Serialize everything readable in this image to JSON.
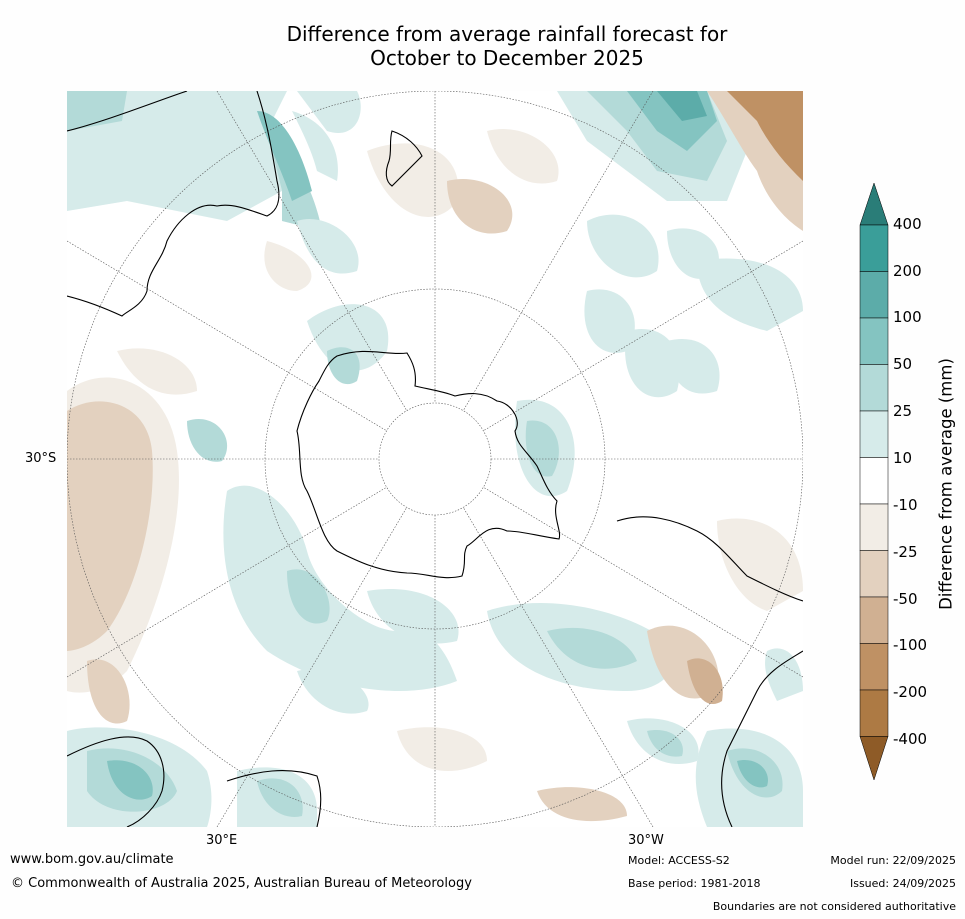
{
  "title": {
    "line1": "Difference from average rainfall forecast for",
    "line2": "October to December 2025"
  },
  "axes": {
    "lat_label": "30°S",
    "lon_label_left": "30°E",
    "lon_label_right": "30°W"
  },
  "colorbar": {
    "title": "Difference from average (mm)",
    "tick_labels": [
      "400",
      "200",
      "100",
      "50",
      "25",
      "10",
      "-10",
      "-25",
      "-50",
      "-100",
      "-200",
      "-400"
    ],
    "colors": {
      "over": "#2a7d78",
      "c200_400": "#3a9e99",
      "c100_200": "#5caca9",
      "c50_100": "#84c4c1",
      "c25_50": "#b3dad8",
      "c10_25": "#d6ebea",
      "neutral": "#ffffff",
      "n10_25": "#f2ede6",
      "n25_50": "#e3d1bf",
      "n50_100": "#d0b092",
      "n100_200": "#bf9164",
      "n200_400": "#ad7a44",
      "under": "#8e5b27"
    }
  },
  "footer": {
    "website": "www.bom.gov.au/climate",
    "copyright": "© Commonwealth of Australia 2025, Australian Bureau of Meteorology",
    "model": "Model: ACCESS-S2",
    "base_period": "Base period: 1981-2018",
    "model_run": "Model run: 22/09/2025",
    "issued": "Issued: 24/09/2025",
    "disclaimer": "Boundaries are not considered authoritative"
  }
}
